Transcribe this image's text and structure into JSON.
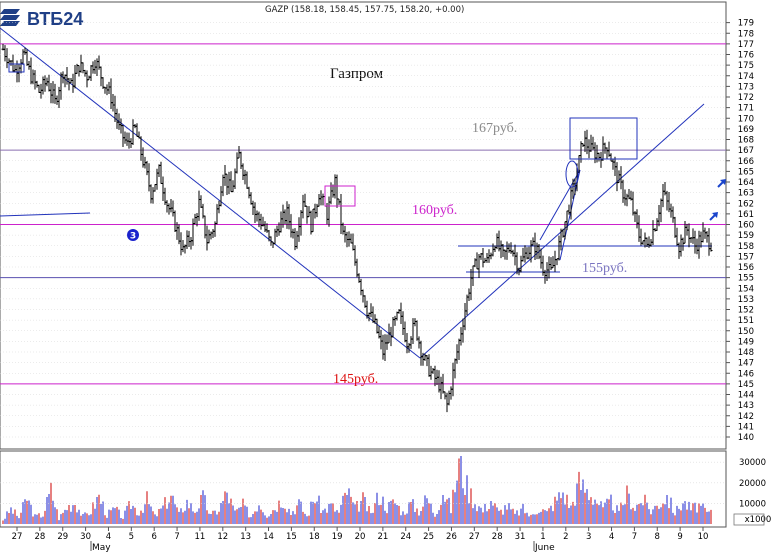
{
  "logo": {
    "text": "ВТБ24",
    "color": "#1f3f86"
  },
  "quote": {
    "text": "GAZP (158.18, 158.45, 157.75, 158.20, +0.00)"
  },
  "chart_data": {
    "type": "candlestick",
    "title": "Газпром",
    "ylim": [
      140,
      180
    ],
    "yticks": [
      140,
      141,
      142,
      143,
      144,
      145,
      146,
      147,
      148,
      149,
      150,
      151,
      152,
      153,
      154,
      155,
      156,
      157,
      158,
      159,
      160,
      161,
      162,
      163,
      164,
      165,
      166,
      167,
      168,
      169,
      170,
      171,
      172,
      173,
      174,
      175,
      176,
      177,
      178,
      179
    ],
    "x_ticks": [
      "27",
      "28",
      "29",
      "30",
      "4",
      "5",
      "6",
      "7",
      "11",
      "12",
      "13",
      "14",
      "15",
      "18",
      "19",
      "20",
      "21",
      "24",
      "25",
      "26",
      "27",
      "28",
      "31",
      "1",
      "2",
      "3",
      "4",
      "7",
      "8",
      "9",
      "10"
    ],
    "month_labels": [
      "May",
      "June"
    ],
    "volume_ticks": [
      "30000",
      "20000",
      "10000"
    ],
    "volume_unit": "x1000",
    "volume_max": 33000,
    "price_levels": [
      {
        "value": 177,
        "label": ""
      },
      {
        "value": 167,
        "label": "167руб."
      },
      {
        "value": 160,
        "label": "160руб."
      },
      {
        "value": 155,
        "label": "155руб."
      },
      {
        "value": 145,
        "label": "145руб."
      }
    ],
    "price_path": [
      [
        0,
        176.5
      ],
      [
        6,
        174.5
      ],
      [
        10,
        176
      ],
      [
        14,
        174
      ],
      [
        18,
        172.5
      ],
      [
        22,
        173.5
      ],
      [
        26,
        171.5
      ],
      [
        30,
        174.5
      ],
      [
        34,
        173
      ],
      [
        38,
        175
      ],
      [
        42,
        174
      ],
      [
        46,
        175.5
      ],
      [
        50,
        173.5
      ],
      [
        54,
        172
      ],
      [
        58,
        169
      ],
      [
        62,
        167.5
      ],
      [
        66,
        169
      ],
      [
        70,
        166
      ],
      [
        74,
        163
      ],
      [
        78,
        165
      ],
      [
        82,
        162
      ],
      [
        86,
        160
      ],
      [
        90,
        157.5
      ],
      [
        94,
        159
      ],
      [
        98,
        162
      ],
      [
        102,
        158.5
      ],
      [
        106,
        160
      ],
      [
        110,
        165
      ],
      [
        114,
        163
      ],
      [
        118,
        166.5
      ],
      [
        122,
        164
      ],
      [
        126,
        161
      ],
      [
        130,
        160
      ],
      [
        134,
        158
      ],
      [
        138,
        160
      ],
      [
        142,
        161
      ],
      [
        146,
        158.5
      ],
      [
        150,
        162.5
      ],
      [
        154,
        160
      ],
      [
        158,
        163
      ],
      [
        162,
        161
      ],
      [
        166,
        164
      ],
      [
        170,
        159
      ],
      [
        174,
        158
      ],
      [
        178,
        155
      ],
      [
        182,
        152
      ],
      [
        186,
        150.5
      ],
      [
        190,
        148
      ],
      [
        194,
        150
      ],
      [
        198,
        151.5
      ],
      [
        202,
        149
      ],
      [
        206,
        150.5
      ],
      [
        210,
        147.5
      ],
      [
        214,
        146
      ],
      [
        218,
        145
      ],
      [
        222,
        143
      ],
      [
        226,
        147
      ],
      [
        230,
        151
      ],
      [
        234,
        155
      ],
      [
        238,
        157
      ],
      [
        242,
        156.5
      ],
      [
        246,
        158.5
      ],
      [
        250,
        157
      ],
      [
        254,
        158
      ],
      [
        258,
        156
      ],
      [
        262,
        157.5
      ],
      [
        266,
        158
      ],
      [
        270,
        156
      ],
      [
        274,
        155.5
      ],
      [
        278,
        158
      ],
      [
        282,
        161
      ],
      [
        286,
        164
      ],
      [
        290,
        168
      ],
      [
        294,
        167
      ],
      [
        298,
        166.5
      ],
      [
        302,
        167.5
      ],
      [
        306,
        165
      ],
      [
        310,
        163
      ],
      [
        314,
        162
      ],
      [
        318,
        159
      ],
      [
        322,
        158
      ],
      [
        326,
        160
      ],
      [
        330,
        163
      ],
      [
        334,
        161
      ],
      [
        338,
        158
      ],
      [
        342,
        159.5
      ],
      [
        346,
        158
      ],
      [
        350,
        159
      ],
      [
        354,
        158.2
      ]
    ],
    "volume": [
      [
        0,
        2200
      ],
      [
        4,
        8000
      ],
      [
        8,
        3500
      ],
      [
        12,
        14000
      ],
      [
        16,
        4000
      ],
      [
        20,
        5000
      ],
      [
        24,
        18000
      ],
      [
        28,
        3000
      ],
      [
        32,
        9000
      ],
      [
        36,
        12000
      ],
      [
        40,
        4000
      ],
      [
        44,
        7000
      ],
      [
        48,
        15000
      ],
      [
        52,
        5000
      ],
      [
        56,
        8000
      ],
      [
        60,
        3500
      ],
      [
        64,
        11000
      ],
      [
        68,
        6000
      ],
      [
        72,
        13000
      ],
      [
        76,
        4000
      ],
      [
        80,
        9000
      ],
      [
        84,
        16000
      ],
      [
        88,
        5000
      ],
      [
        92,
        12000
      ],
      [
        96,
        7000
      ],
      [
        100,
        14000
      ],
      [
        104,
        4500
      ],
      [
        108,
        8000
      ],
      [
        112,
        17000
      ],
      [
        116,
        6000
      ],
      [
        120,
        10000
      ],
      [
        124,
        4000
      ],
      [
        128,
        12000
      ],
      [
        132,
        5000
      ],
      [
        136,
        9000
      ],
      [
        140,
        14000
      ],
      [
        144,
        6000
      ],
      [
        148,
        11000
      ],
      [
        152,
        4000
      ],
      [
        156,
        15000
      ],
      [
        160,
        7000
      ],
      [
        164,
        10000
      ],
      [
        168,
        6000
      ],
      [
        172,
        18000
      ],
      [
        176,
        8000
      ],
      [
        180,
        13000
      ],
      [
        184,
        5000
      ],
      [
        188,
        16000
      ],
      [
        192,
        9000
      ],
      [
        196,
        12000
      ],
      [
        200,
        6000
      ],
      [
        204,
        11000
      ],
      [
        208,
        7000
      ],
      [
        212,
        14000
      ],
      [
        216,
        5000
      ],
      [
        220,
        18000
      ],
      [
        224,
        8000
      ],
      [
        228,
        33000
      ],
      [
        232,
        20000
      ],
      [
        236,
        12000
      ],
      [
        240,
        7000
      ],
      [
        244,
        13000
      ],
      [
        248,
        6000
      ],
      [
        252,
        10000
      ],
      [
        256,
        5000
      ],
      [
        260,
        8000
      ],
      [
        264,
        4000
      ],
      [
        268,
        9000
      ],
      [
        272,
        6000
      ],
      [
        276,
        12000
      ],
      [
        280,
        17000
      ],
      [
        284,
        9000
      ],
      [
        288,
        22000
      ],
      [
        292,
        18000
      ],
      [
        296,
        14000
      ],
      [
        300,
        8000
      ],
      [
        304,
        12000
      ],
      [
        308,
        6000
      ],
      [
        312,
        16000
      ],
      [
        316,
        9000
      ],
      [
        320,
        13000
      ],
      [
        324,
        7000
      ],
      [
        328,
        11000
      ],
      [
        332,
        15000
      ],
      [
        336,
        6000
      ],
      [
        340,
        12000
      ],
      [
        344,
        8000
      ],
      [
        348,
        10000
      ],
      [
        352,
        6000
      ]
    ]
  }
}
